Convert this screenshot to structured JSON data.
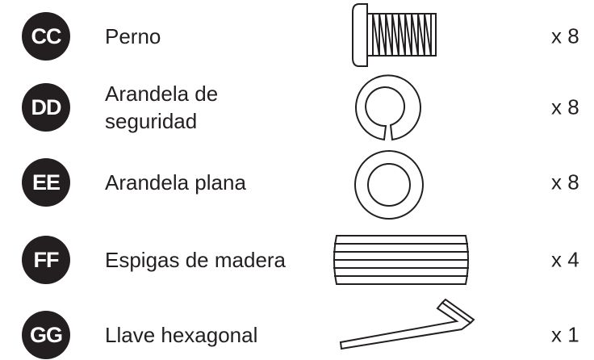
{
  "items": [
    {
      "badge": "CC",
      "name": "Perno",
      "quantity": "x 8"
    },
    {
      "badge": "DD",
      "name": "Arandela de seguridad",
      "quantity": "x 8"
    },
    {
      "badge": "EE",
      "name": "Arandela plana",
      "quantity": "x 8"
    },
    {
      "badge": "FF",
      "name": "Espigas de madera",
      "quantity": "x 4"
    },
    {
      "badge": "GG",
      "name": "Llave hexagonal",
      "quantity": "x 1"
    }
  ]
}
